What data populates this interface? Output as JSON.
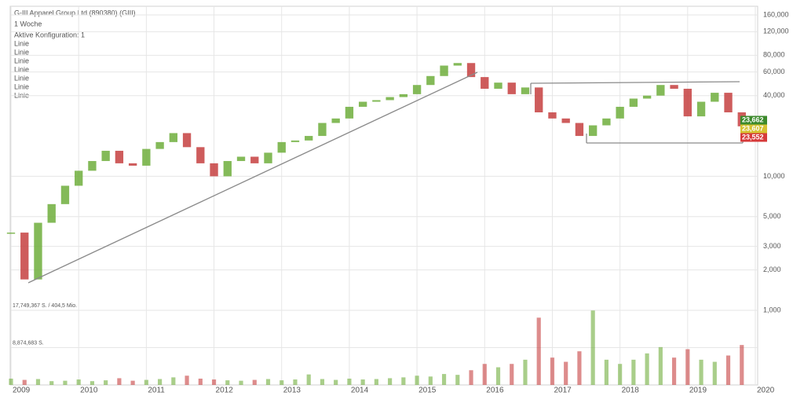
{
  "chart_data": {
    "type": "candlestick",
    "title": "G-III Apparel Group Ltd (890380) (GIII)",
    "subtitle": "1 Woche",
    "config_label": "Aktive Konfiguration: 1",
    "drawings": [
      "Linie",
      "Linie",
      "Linie",
      "Linie",
      "Linie",
      "Linie",
      "Linie"
    ],
    "log_scale": true,
    "grid": true,
    "up_color": "#6fae3c",
    "down_color": "#c6403f",
    "x": [
      2009.0,
      2009.2,
      2009.4,
      2009.6,
      2009.8,
      2010.0,
      2010.2,
      2010.4,
      2010.6,
      2010.8,
      2011.0,
      2011.2,
      2011.4,
      2011.6,
      2011.8,
      2012.0,
      2012.2,
      2012.4,
      2012.6,
      2012.8,
      2013.0,
      2013.2,
      2013.4,
      2013.6,
      2013.8,
      2014.0,
      2014.2,
      2014.4,
      2014.6,
      2014.8,
      2015.0,
      2015.2,
      2015.4,
      2015.6,
      2015.8,
      2016.0,
      2016.2,
      2016.4,
      2016.6,
      2016.8,
      2017.0,
      2017.2,
      2017.4,
      2017.6,
      2017.8,
      2018.0,
      2018.2,
      2018.4,
      2018.6,
      2018.8,
      2019.0,
      2019.2,
      2019.4,
      2019.6,
      2019.8
    ],
    "series": [
      {
        "name": "Kurs",
        "values": [
          3800,
          1700,
          4500,
          6200,
          8500,
          11000,
          13000,
          15500,
          12500,
          12000,
          16000,
          18000,
          21000,
          16500,
          12500,
          10000,
          13000,
          14000,
          12500,
          15000,
          18000,
          18500,
          20000,
          25000,
          27000,
          33000,
          36000,
          37000,
          39000,
          41000,
          48000,
          56000,
          67000,
          70000,
          55000,
          45000,
          50000,
          41000,
          46000,
          30000,
          27000,
          25000,
          20000,
          24000,
          27000,
          33000,
          38000,
          40000,
          48000,
          45000,
          28000,
          36000,
          42000,
          30000,
          23600
        ]
      },
      {
        "name": "Volumen",
        "axis": "y2",
        "values": [
          1500000,
          1200000,
          1400000,
          900000,
          1000000,
          1300000,
          900000,
          1100000,
          1600000,
          1000000,
          1200000,
          1400000,
          1800000,
          2200000,
          1500000,
          1300000,
          1100000,
          1000000,
          1200000,
          1400000,
          1100000,
          1300000,
          2500000,
          1400000,
          1200000,
          1500000,
          1300000,
          1400000,
          1600000,
          1800000,
          2200000,
          2000000,
          2600000,
          2400000,
          3500000,
          5000000,
          4200000,
          5000000,
          6000000,
          16000000,
          6500000,
          5500000,
          8000000,
          17700000,
          6000000,
          5000000,
          6000000,
          7500000,
          9000000,
          6500000,
          8500000,
          6000000,
          5500000,
          7000000,
          9500000
        ]
      }
    ],
    "xlim": [
      2009,
      2020
    ],
    "xticks": [
      2009,
      2010,
      2011,
      2012,
      2013,
      2014,
      2015,
      2016,
      2017,
      2018,
      2019,
      2020
    ],
    "ylim": [
      1000,
      160000
    ],
    "yticks": [
      {
        "value": 1000,
        "label": "1,000"
      },
      {
        "value": 2000,
        "label": "2,000"
      },
      {
        "value": 3000,
        "label": "3,000"
      },
      {
        "value": 5000,
        "label": "5,000"
      },
      {
        "value": 10000,
        "label": "10,000"
      },
      {
        "value": 40000,
        "label": "40,000"
      },
      {
        "value": 60000,
        "label": "60,000"
      },
      {
        "value": 80000,
        "label": "80,000"
      },
      {
        "value": 120000,
        "label": "120,000"
      },
      {
        "value": 160000,
        "label": "160,000"
      }
    ],
    "y2lim": [
      0,
      17749367
    ],
    "y2ticks": [
      {
        "value": 17749367,
        "label": "17,749,367 S. / 404,5 Mio."
      },
      {
        "value": 8874683,
        "label": "8,874,683 S."
      }
    ],
    "price_labels": [
      "23,662",
      "23,607",
      "23,552"
    ],
    "price_label_colors": [
      "#3c8a2c",
      "#d6c232",
      "#d63a3a"
    ]
  }
}
